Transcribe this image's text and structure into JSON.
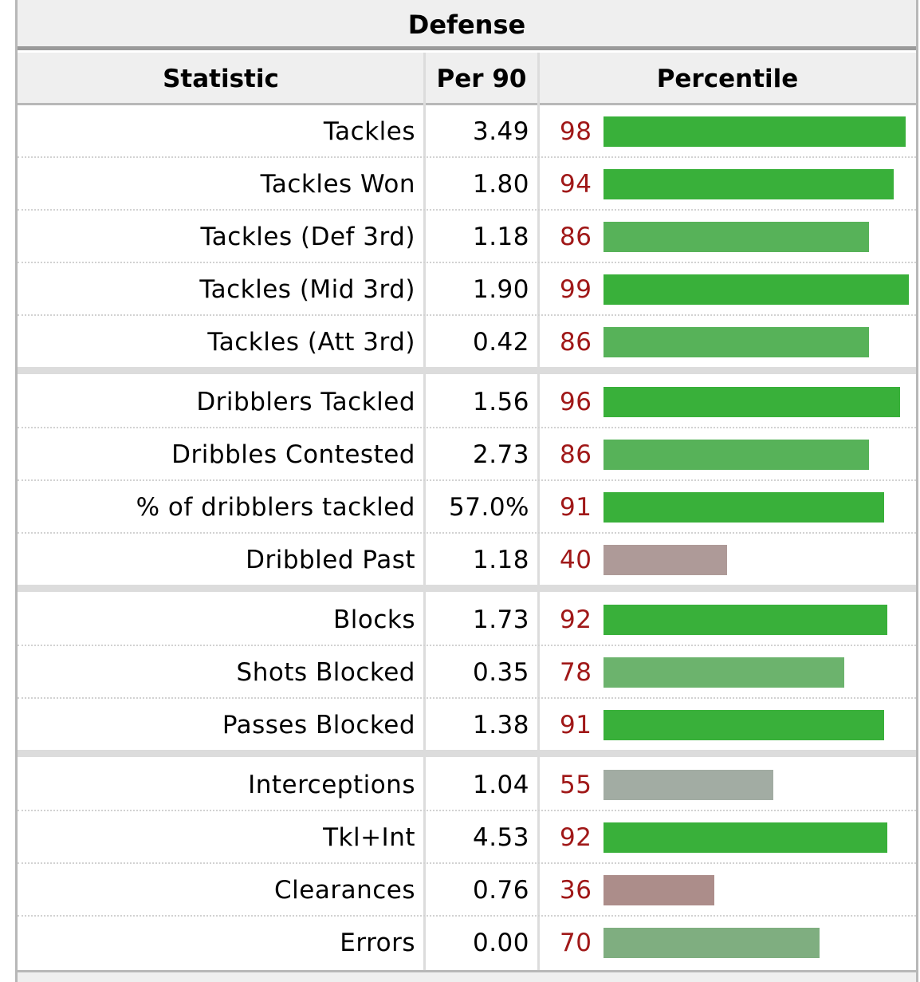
{
  "title": "Defense",
  "columns": {
    "statistic": "Statistic",
    "per90": "Per 90",
    "percentile": "Percentile"
  },
  "colors": {
    "percentile_text": "#a01818",
    "bar_elite": "#39b03a",
    "bar_high": "#57b259",
    "bar_good": "#6cb36d",
    "bar_above_avg": "#7fae80",
    "bar_avg": "#a2aca3",
    "bar_below_avg": "#ae9a98",
    "bar_low": "#ac8d8a"
  },
  "groups": [
    {
      "rows": [
        {
          "stat": "Tackles",
          "per90": "3.49",
          "percentile": "98",
          "pct_value": 98
        },
        {
          "stat": "Tackles Won",
          "per90": "1.80",
          "percentile": "94",
          "pct_value": 94
        },
        {
          "stat": "Tackles (Def 3rd)",
          "per90": "1.18",
          "percentile": "86",
          "pct_value": 86
        },
        {
          "stat": "Tackles (Mid 3rd)",
          "per90": "1.90",
          "percentile": "99",
          "pct_value": 99
        },
        {
          "stat": "Tackles (Att 3rd)",
          "per90": "0.42",
          "percentile": "86",
          "pct_value": 86
        }
      ]
    },
    {
      "rows": [
        {
          "stat": "Dribblers Tackled",
          "per90": "1.56",
          "percentile": "96",
          "pct_value": 96
        },
        {
          "stat": "Dribbles Contested",
          "per90": "2.73",
          "percentile": "86",
          "pct_value": 86
        },
        {
          "stat": "% of dribblers tackled",
          "per90": "57.0%",
          "percentile": "91",
          "pct_value": 91
        },
        {
          "stat": "Dribbled Past",
          "per90": "1.18",
          "percentile": "40",
          "pct_value": 40
        }
      ]
    },
    {
      "rows": [
        {
          "stat": "Blocks",
          "per90": "1.73",
          "percentile": "92",
          "pct_value": 92
        },
        {
          "stat": "Shots Blocked",
          "per90": "0.35",
          "percentile": "78",
          "pct_value": 78
        },
        {
          "stat": "Passes Blocked",
          "per90": "1.38",
          "percentile": "91",
          "pct_value": 91
        }
      ]
    },
    {
      "rows": [
        {
          "stat": "Interceptions",
          "per90": "1.04",
          "percentile": "55",
          "pct_value": 55
        },
        {
          "stat": "Tkl+Int",
          "per90": "4.53",
          "percentile": "92",
          "pct_value": 92
        },
        {
          "stat": "Clearances",
          "per90": "0.76",
          "percentile": "36",
          "pct_value": 36
        },
        {
          "stat": "Errors",
          "per90": "0.00",
          "percentile": "70",
          "pct_value": 70
        }
      ]
    }
  ]
}
